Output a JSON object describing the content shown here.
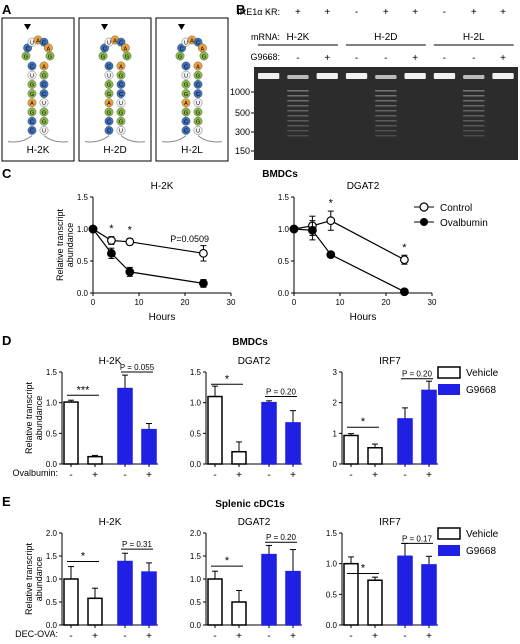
{
  "panels": {
    "A": {
      "letter": "A",
      "hairpins": [
        {
          "label": "H-2K",
          "stem": [
            "C",
            "U",
            "G",
            "G",
            "A",
            "G",
            "C",
            "C"
          ],
          "stem_right": [
            "A",
            "G",
            "C",
            "C",
            "U",
            "G",
            "G",
            "U"
          ],
          "loop": [
            "G",
            "C",
            "U",
            "A",
            "C",
            "A",
            "G"
          ]
        },
        {
          "label": "H-2D",
          "stem": [
            "C",
            "U",
            "G",
            "G",
            "A",
            "G",
            "C",
            "C"
          ],
          "stem_right": [
            "A",
            "G",
            "C",
            "C",
            "U",
            "G",
            "G",
            "U"
          ],
          "loop": [
            "G",
            "C",
            "U",
            "A",
            "C",
            "A",
            "G"
          ]
        },
        {
          "label": "H-2L",
          "stem": [
            "C",
            "U",
            "G",
            "G",
            "A",
            "G",
            "C",
            "C"
          ],
          "stem_right": [
            "A",
            "G",
            "C",
            "C",
            "U",
            "G",
            "G",
            "U"
          ],
          "loop": [
            "G",
            "C",
            "U",
            "A",
            "C",
            "A",
            "G"
          ]
        }
      ],
      "colors": {
        "A": "#e8a03a",
        "U": "#f2f2f2",
        "G": "#8ab94a",
        "C": "#3c6fb8"
      }
    },
    "B": {
      "letter": "B",
      "row_labels": {
        "kr": "IRE1α KR:",
        "mrna": "mRNA:",
        "drug": "G9668:"
      },
      "kr": [
        "-",
        "+",
        "+",
        "-",
        "+",
        "+",
        "-",
        "+",
        "+"
      ],
      "drug": [
        "-",
        "-",
        "+",
        "-",
        "-",
        "+",
        "-",
        "-",
        "+"
      ],
      "mrna_groups": [
        "H-2K",
        "H-2D",
        "H-2L"
      ],
      "ladder": [
        "1000",
        "500",
        "300",
        "150"
      ]
    },
    "C": {
      "letter": "C",
      "group_title": "BMDCs",
      "legend": {
        "control": "Control",
        "ovalbumin": "Ovalbumin"
      }
    },
    "D": {
      "letter": "D",
      "group_title": "BMDCs",
      "treatment_label": "Ovalbumin:",
      "legend": {
        "vehicle": "Vehicle",
        "drug": "G9668"
      }
    },
    "E": {
      "letter": "E",
      "group_title": "Splenic cDC1s",
      "treatment_label": "DEC-OVA:",
      "legend": {
        "vehicle": "Vehicle",
        "drug": "G9668"
      }
    }
  },
  "chart_data": [
    {
      "id": "C1",
      "type": "line",
      "title": "H-2K",
      "xlabel": "Hours",
      "ylabel": "Relative transcript abundance",
      "xlim": [
        0,
        30
      ],
      "ylim": [
        0,
        1.5
      ],
      "xticks": [
        "0",
        "10",
        "20",
        "30"
      ],
      "yticks": [
        "0.0",
        "0.5",
        "1.0",
        "1.5"
      ],
      "series": [
        {
          "name": "Control",
          "x": [
            0,
            4,
            8,
            24
          ],
          "y": [
            1.0,
            0.82,
            0.8,
            0.62
          ],
          "err": [
            0.02,
            0.06,
            0.05,
            0.12
          ]
        },
        {
          "name": "Ovalbumin",
          "x": [
            0,
            4,
            8,
            24
          ],
          "y": [
            1.0,
            0.62,
            0.33,
            0.15
          ],
          "err": [
            0.02,
            0.08,
            0.07,
            0.06
          ]
        }
      ],
      "annotations": [
        {
          "x": 4,
          "y": 0.95,
          "text": "*"
        },
        {
          "x": 8,
          "y": 0.93,
          "text": "*"
        },
        {
          "x": 21,
          "y": 0.8,
          "text": "P=0.0509"
        }
      ]
    },
    {
      "id": "C2",
      "type": "line",
      "title": "DGAT2",
      "xlabel": "Hours",
      "ylabel": "",
      "xlim": [
        0,
        30
      ],
      "ylim": [
        0,
        1.5
      ],
      "xticks": [
        "0",
        "10",
        "20",
        "30"
      ],
      "yticks": [
        "0.0",
        "0.5",
        "1.0",
        "1.5"
      ],
      "series": [
        {
          "name": "Control",
          "x": [
            0,
            4,
            8,
            24
          ],
          "y": [
            1.0,
            1.05,
            1.13,
            0.52
          ],
          "err": [
            0.02,
            0.15,
            0.15,
            0.07
          ]
        },
        {
          "name": "Ovalbumin",
          "x": [
            0,
            4,
            8,
            24
          ],
          "y": [
            1.0,
            0.98,
            0.6,
            0.02
          ],
          "err": [
            0.02,
            0.15,
            0.02,
            0.02
          ]
        }
      ],
      "annotations": [
        {
          "x": 8,
          "y": 1.35,
          "text": "*"
        },
        {
          "x": 24,
          "y": 0.66,
          "text": "*"
        }
      ]
    },
    {
      "id": "D1",
      "type": "bar",
      "title": "H-2K",
      "ylabel": "Relative transcript abundance",
      "ylim": [
        0,
        1.5
      ],
      "yticks": [
        "0.0",
        "0.5",
        "1.0",
        "1.5"
      ],
      "categories": [
        "-",
        "+",
        "-",
        "+"
      ],
      "values": [
        1.01,
        0.12,
        1.23,
        0.56
      ],
      "err": [
        0.03,
        0.02,
        0.22,
        0.1
      ],
      "groups": [
        "Vehicle",
        "Vehicle",
        "G9668",
        "G9668"
      ],
      "sig": [
        {
          "from": 0,
          "to": 1,
          "text": "***",
          "y": 1.12
        },
        {
          "from": 2,
          "to": 3,
          "text": "P = 0.055",
          "y": 1.5
        }
      ]
    },
    {
      "id": "D2",
      "type": "bar",
      "title": "DGAT2",
      "ylabel": "",
      "ylim": [
        0,
        1.5
      ],
      "yticks": [
        "0.0",
        "0.5",
        "1.0",
        "1.5"
      ],
      "categories": [
        "-",
        "+",
        "-",
        "+"
      ],
      "values": [
        1.1,
        0.2,
        1.0,
        0.67
      ],
      "err": [
        0.17,
        0.16,
        0.03,
        0.2
      ],
      "groups": [
        "Vehicle",
        "Vehicle",
        "G9668",
        "G9668"
      ],
      "sig": [
        {
          "from": 0,
          "to": 1,
          "text": "*",
          "y": 1.3
        },
        {
          "from": 2,
          "to": 3,
          "text": "P = 0.20",
          "y": 1.1
        }
      ]
    },
    {
      "id": "D3",
      "type": "bar",
      "title": "IRF7",
      "ylabel": "",
      "ylim": [
        0,
        3
      ],
      "yticks": [
        "0",
        "1",
        "2",
        "3"
      ],
      "categories": [
        "-",
        "+",
        "-",
        "+"
      ],
      "values": [
        0.93,
        0.53,
        1.47,
        2.4
      ],
      "err": [
        0.06,
        0.12,
        0.36,
        0.3
      ],
      "groups": [
        "Vehicle",
        "Vehicle",
        "G9668",
        "G9668"
      ],
      "sig": [
        {
          "from": 0,
          "to": 1,
          "text": "*",
          "y": 1.2
        },
        {
          "from": 2,
          "to": 3,
          "text": "P = 0.20",
          "y": 2.78
        }
      ]
    },
    {
      "id": "E1",
      "type": "bar",
      "title": "H-2K",
      "ylabel": "Relative transcript abundance",
      "ylim": [
        0,
        2.0
      ],
      "yticks": [
        "0.0",
        "0.5",
        "1.0",
        "1.5",
        "2.0"
      ],
      "categories": [
        "-",
        "+",
        "-",
        "+"
      ],
      "values": [
        1.0,
        0.58,
        1.38,
        1.15
      ],
      "err": [
        0.27,
        0.22,
        0.18,
        0.2
      ],
      "groups": [
        "Vehicle",
        "Vehicle",
        "G9668",
        "G9668"
      ],
      "sig": [
        {
          "from": 0,
          "to": 1,
          "text": "*",
          "y": 1.38
        },
        {
          "from": 2,
          "to": 3,
          "text": "P = 0.31",
          "y": 1.65
        }
      ]
    },
    {
      "id": "E2",
      "type": "bar",
      "title": "DGAT2",
      "ylabel": "",
      "ylim": [
        0,
        2.0
      ],
      "yticks": [
        "0.0",
        "0.5",
        "1.0",
        "1.5",
        "2.0"
      ],
      "categories": [
        "-",
        "+",
        "-",
        "+"
      ],
      "values": [
        1.0,
        0.5,
        1.53,
        1.16
      ],
      "err": [
        0.17,
        0.25,
        0.2,
        0.48
      ],
      "groups": [
        "Vehicle",
        "Vehicle",
        "G9668",
        "G9668"
      ],
      "sig": [
        {
          "from": 0,
          "to": 1,
          "text": "*",
          "y": 1.28
        },
        {
          "from": 2,
          "to": 3,
          "text": "P = 0.20",
          "y": 1.8
        }
      ]
    },
    {
      "id": "E3",
      "type": "bar",
      "title": "IRF7",
      "ylabel": "",
      "ylim": [
        0,
        1.5
      ],
      "yticks": [
        "0.0",
        "0.5",
        "1.0",
        "1.5"
      ],
      "categories": [
        "-",
        "+",
        "-",
        "+"
      ],
      "values": [
        1.0,
        0.73,
        1.12,
        0.98
      ],
      "err": [
        0.11,
        0.05,
        0.21,
        0.14
      ],
      "groups": [
        "Vehicle",
        "Vehicle",
        "G9668",
        "G9668"
      ],
      "sig": [
        {
          "from": 0,
          "to": 1,
          "text": "*",
          "y": 0.84
        },
        {
          "from": 2,
          "to": 3,
          "text": "P = 0.17",
          "y": 1.33
        }
      ]
    }
  ]
}
